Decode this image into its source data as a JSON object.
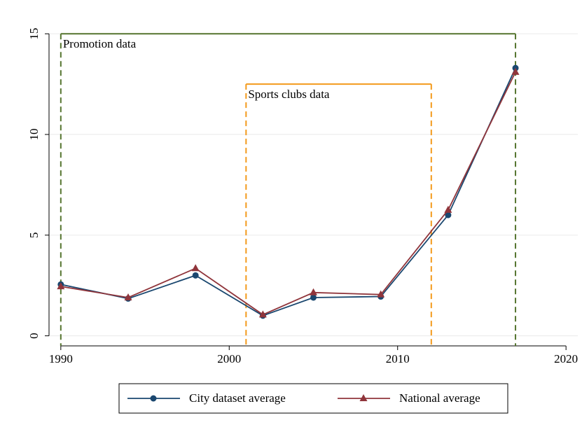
{
  "chart_data": {
    "type": "line",
    "x": [
      1990,
      1994,
      1998,
      2002,
      2005,
      2009,
      2013,
      2017
    ],
    "series": [
      {
        "name": "City dataset average",
        "color": "#1a476f",
        "marker": "circle",
        "values": [
          2.55,
          1.85,
          3.0,
          1.0,
          1.9,
          1.95,
          6.0,
          13.3
        ]
      },
      {
        "name": "National average",
        "color": "#90353b",
        "marker": "triangle",
        "values": [
          2.45,
          1.9,
          3.35,
          1.05,
          2.15,
          2.05,
          6.25,
          13.1
        ]
      }
    ],
    "ranges": [
      {
        "label": "Promotion data",
        "start": 1990,
        "end": 2017,
        "level": 15,
        "color": "#55752f"
      },
      {
        "label": "Sports clubs data",
        "start": 2001,
        "end": 2012,
        "level": 12.5,
        "color": "#f39a1b"
      }
    ],
    "xlim": [
      1989.3,
      2020.7
    ],
    "xticks": [
      1990,
      2000,
      2010,
      2020
    ],
    "ylim": [
      -0.5,
      15.6
    ],
    "yticks": [
      0,
      5,
      10,
      15
    ],
    "grid": true,
    "legend": "bottom"
  }
}
